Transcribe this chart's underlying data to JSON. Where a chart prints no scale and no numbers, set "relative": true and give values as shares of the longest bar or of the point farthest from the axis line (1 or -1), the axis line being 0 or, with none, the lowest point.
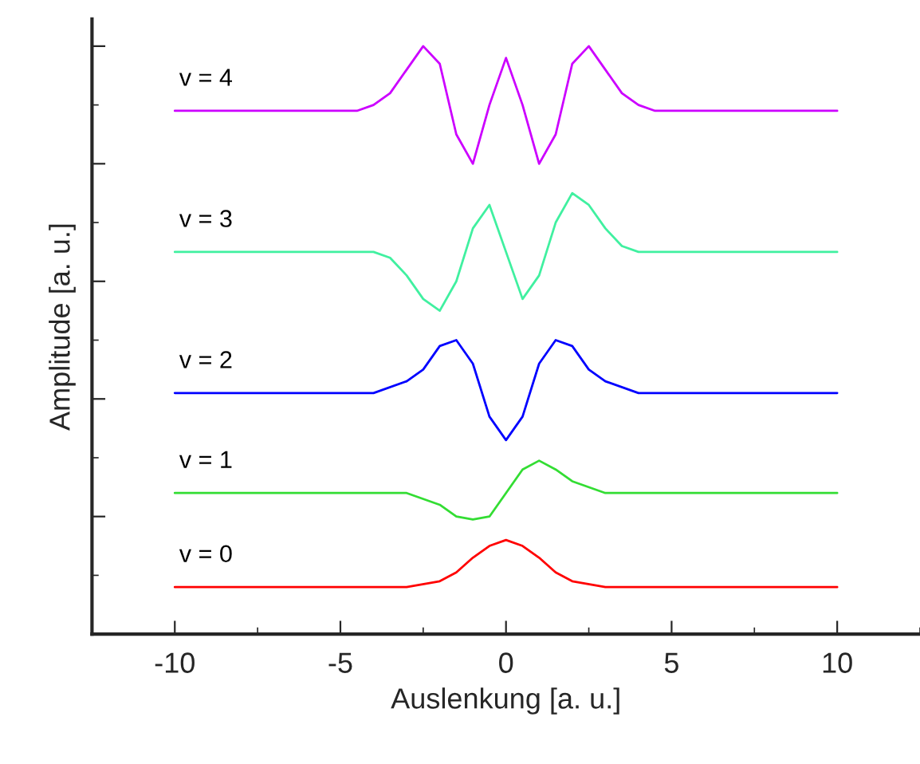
{
  "chart_data": {
    "type": "line",
    "relative": true,
    "xlabel": "Auslenkung [a. u.]",
    "ylabel": "Amplitude [a. u.]",
    "xlim": [
      -12.5,
      12.5
    ],
    "xticks": [
      -10,
      -5,
      0,
      5,
      10
    ],
    "tick_labels": "x",
    "grid": false,
    "legend": false,
    "series": [
      {
        "name": "v = 0",
        "color": "#ff0000",
        "x": [
          -10,
          -3,
          -2,
          -1.5,
          -1,
          -0.5,
          0,
          0.5,
          1,
          1.5,
          2,
          3,
          10
        ],
        "values": [
          0.08,
          0.08,
          0.09,
          0.105,
          0.13,
          0.15,
          0.16,
          0.15,
          0.13,
          0.105,
          0.09,
          0.08,
          0.08
        ]
      },
      {
        "name": "v = 1",
        "color": "#33dd33",
        "x": [
          -10,
          -3,
          -2,
          -1.5,
          -1,
          -0.5,
          0,
          0.5,
          1,
          1.5,
          2,
          3,
          10
        ],
        "values": [
          0.24,
          0.24,
          0.22,
          0.2,
          0.195,
          0.2,
          0.24,
          0.28,
          0.295,
          0.28,
          0.26,
          0.24,
          0.24
        ]
      },
      {
        "name": "v = 2",
        "color": "#0000ff",
        "x": [
          -10,
          -4,
          -3,
          -2.5,
          -2,
          -1.5,
          -1,
          -0.5,
          0,
          0.5,
          1,
          1.5,
          2,
          2.5,
          3,
          4,
          10
        ],
        "values": [
          0.41,
          0.41,
          0.43,
          0.45,
          0.49,
          0.5,
          0.46,
          0.37,
          0.33,
          0.37,
          0.46,
          0.5,
          0.49,
          0.45,
          0.43,
          0.41,
          0.41
        ]
      },
      {
        "name": "v = 3",
        "color": "#40f0a0",
        "x": [
          -10,
          -4,
          -3.5,
          -3,
          -2.5,
          -2,
          -1.5,
          -1,
          -0.5,
          0,
          0.5,
          1,
          1.5,
          2,
          2.5,
          3,
          3.5,
          4,
          10
        ],
        "values": [
          0.65,
          0.65,
          0.64,
          0.61,
          0.57,
          0.55,
          0.6,
          0.69,
          0.73,
          0.65,
          0.57,
          0.61,
          0.7,
          0.75,
          0.73,
          0.69,
          0.66,
          0.65,
          0.65
        ]
      },
      {
        "name": "v = 4",
        "color": "#cc00ff",
        "x": [
          -10,
          -4.5,
          -4,
          -3.5,
          -3,
          -2.5,
          -2,
          -1.5,
          -1,
          -0.5,
          0,
          0.5,
          1,
          1.5,
          2,
          2.5,
          3,
          3.5,
          4,
          4.5,
          10
        ],
        "values": [
          0.89,
          0.89,
          0.9,
          0.92,
          0.96,
          1.0,
          0.97,
          0.85,
          0.8,
          0.9,
          0.98,
          0.9,
          0.8,
          0.85,
          0.97,
          1.0,
          0.96,
          0.92,
          0.9,
          0.89,
          0.89
        ]
      }
    ]
  }
}
